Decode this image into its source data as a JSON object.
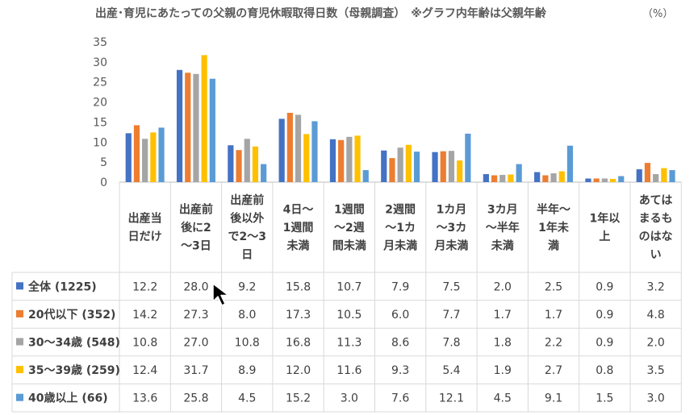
{
  "chart_data": {
    "type": "bar",
    "title": "出産･育児にあたっての父親の育児休暇取得日数（母親調査）　※グラフ内年齢は父親年齢",
    "unit_label": "（%）",
    "ylim": [
      0,
      35
    ],
    "yticks": [
      0,
      5,
      10,
      15,
      20,
      25,
      30,
      35
    ],
    "grid": false,
    "categories": [
      [
        "出産当",
        "日だけ"
      ],
      [
        "出産前",
        "後に2",
        "～3日"
      ],
      [
        "出産前",
        "後以外",
        "で2～3",
        "日"
      ],
      [
        "4日～",
        "1週間",
        "未満"
      ],
      [
        "1週間",
        "～2週",
        "間未満"
      ],
      [
        "2週間",
        "～1カ",
        "月未満"
      ],
      [
        "1カ月",
        "～3カ",
        "月未満"
      ],
      [
        "3カ月",
        "～半年",
        "未満"
      ],
      [
        "半年～",
        "1年未",
        "満"
      ],
      [
        "1年以",
        "上"
      ],
      [
        "あては",
        "まるも",
        "のはな",
        "い"
      ]
    ],
    "series": [
      {
        "name": "全体 (1225)",
        "color": "#4472C4",
        "values": [
          12.2,
          28.0,
          9.2,
          15.8,
          10.7,
          7.9,
          7.5,
          2.0,
          2.5,
          0.9,
          3.2
        ],
        "labels": [
          "12.2",
          "28.0",
          "9.2",
          "15.8",
          "10.7",
          "7.9",
          "7.5",
          "2.0",
          "2.5",
          "0.9",
          "3.2"
        ]
      },
      {
        "name": "20代以下 (352)",
        "color": "#ED7D31",
        "values": [
          14.2,
          27.3,
          8.0,
          17.3,
          10.5,
          6.0,
          7.7,
          1.7,
          1.7,
          0.9,
          4.8
        ],
        "labels": [
          "14.2",
          "27.3",
          "8.0",
          "17.3",
          "10.5",
          "6.0",
          "7.7",
          "1.7",
          "1.7",
          "0.9",
          "4.8"
        ]
      },
      {
        "name": "30～34歳 (548)",
        "color": "#A5A5A5",
        "values": [
          10.8,
          27.0,
          10.8,
          16.8,
          11.3,
          8.6,
          7.8,
          1.8,
          2.2,
          0.9,
          2.0
        ],
        "labels": [
          "10.8",
          "27.0",
          "10.8",
          "16.8",
          "11.3",
          "8.6",
          "7.8",
          "1.8",
          "2.2",
          "0.9",
          "2.0"
        ]
      },
      {
        "name": "35～39歳 (259)",
        "color": "#FFC000",
        "values": [
          12.4,
          31.7,
          8.9,
          12.0,
          11.6,
          9.3,
          5.4,
          1.9,
          2.7,
          0.8,
          3.5
        ],
        "labels": [
          "12.4",
          "31.7",
          "8.9",
          "12.0",
          "11.6",
          "9.3",
          "5.4",
          "1.9",
          "2.7",
          "0.8",
          "3.5"
        ]
      },
      {
        "name": "40歳以上 (66)",
        "color": "#5B9BD5",
        "values": [
          13.6,
          25.8,
          4.5,
          15.2,
          3.0,
          7.6,
          12.1,
          4.5,
          9.1,
          1.5,
          3.0
        ],
        "labels": [
          "13.6",
          "25.8",
          "4.5",
          "15.2",
          "3.0",
          "7.6",
          "12.1",
          "4.5",
          "9.1",
          "1.5",
          "3.0"
        ]
      }
    ]
  }
}
